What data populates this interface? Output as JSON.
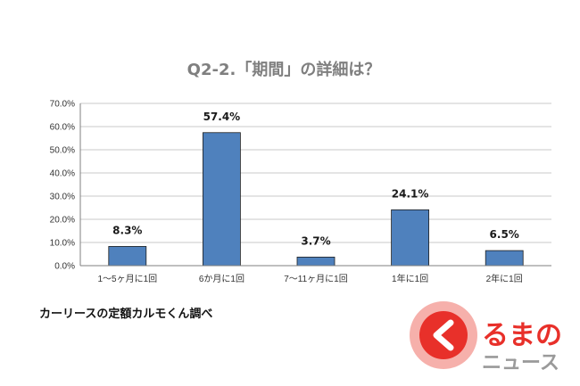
{
  "chart_data": {
    "type": "bar",
    "title": "Q2-2.「期間」の詳細は？",
    "xlabel": "",
    "ylabel": "",
    "categories": [
      "1～5ヶ月に1回",
      "6か月に1回",
      "7～11ヶ月に1回",
      "1年に1回",
      "2年に1回"
    ],
    "values": [
      8.3,
      57.4,
      3.7,
      24.1,
      6.5
    ],
    "data_labels": [
      "8.3%",
      "57.4%",
      "3.7%",
      "24.1%",
      "6.5%"
    ],
    "y_ticks": [
      "0.0%",
      "10.0%",
      "20.0%",
      "30.0%",
      "40.0%",
      "50.0%",
      "60.0%",
      "70.0%"
    ],
    "ylim": [
      0,
      70
    ],
    "grid": true,
    "legend": "none",
    "bar_color": "#4f81bd"
  },
  "source_note": "カーリースの定額カルモくん調べ",
  "logo": {
    "line1": "るまの",
    "line2": "ニュース",
    "icon": "chevron-left-circle-icon",
    "accent_color": "#e8302a"
  }
}
